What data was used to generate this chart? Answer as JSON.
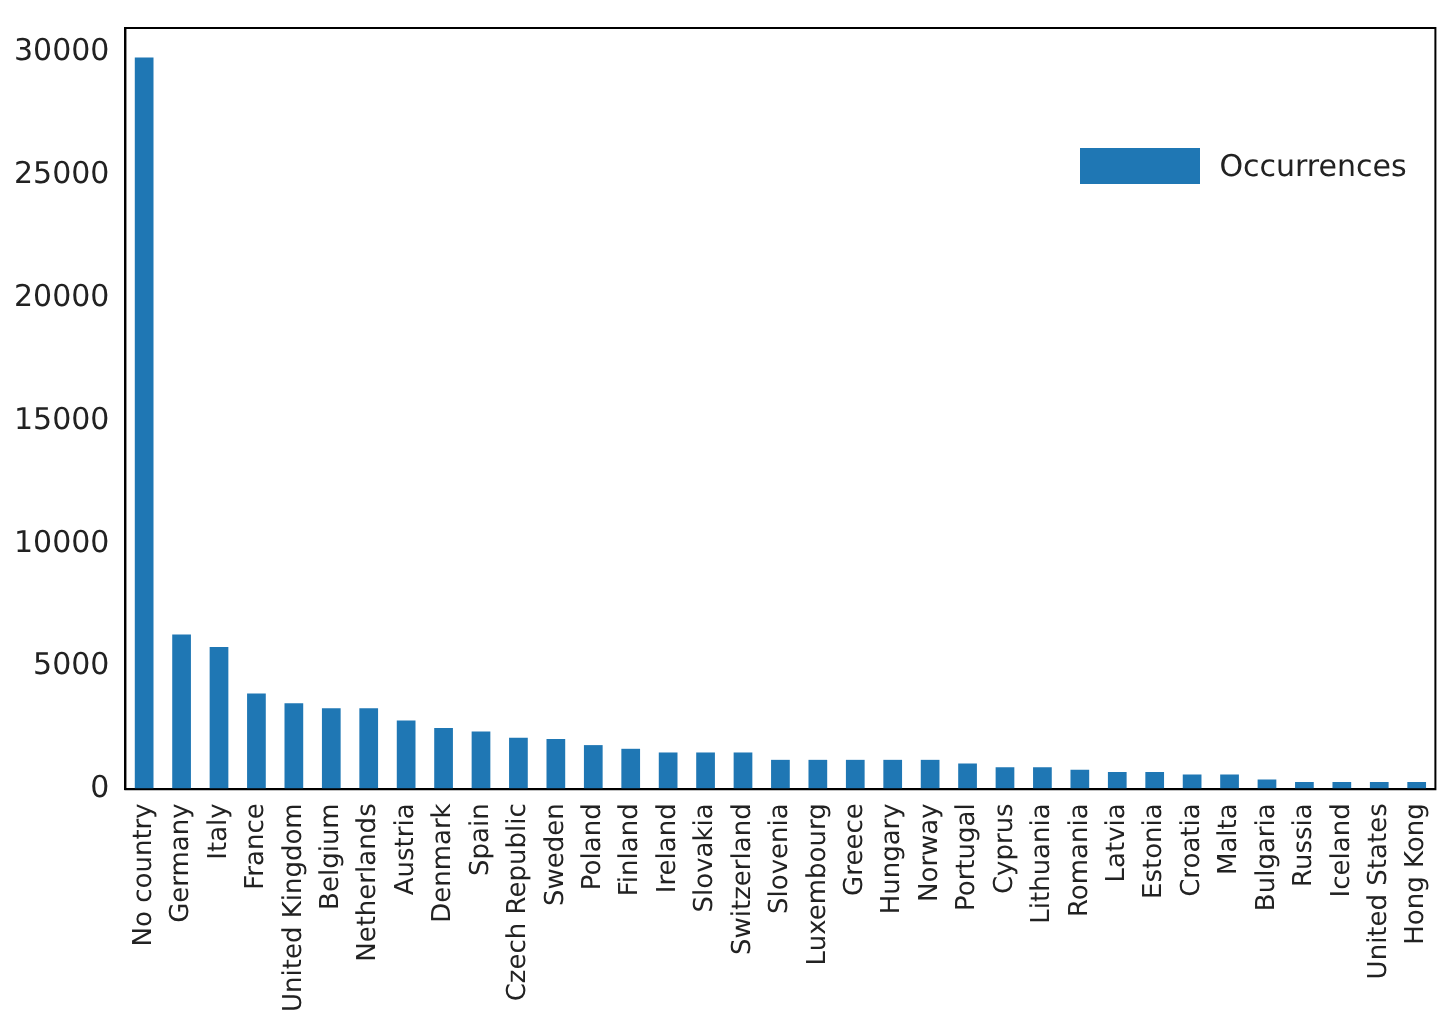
{
  "chart_data": {
    "type": "bar",
    "categories": [
      "No country",
      "Germany",
      "Italy",
      "France",
      "United Kingdom",
      "Belgium",
      "Netherlands",
      "Austria",
      "Denmark",
      "Spain",
      "Czech Republic",
      "Sweden",
      "Poland",
      "Finland",
      "Ireland",
      "Slovakia",
      "Switzerland",
      "Slovenia",
      "Luxembourg",
      "Greece",
      "Hungary",
      "Norway",
      "Portugal",
      "Cyprus",
      "Lithuania",
      "Romania",
      "Latvia",
      "Estonia",
      "Croatia",
      "Malta",
      "Bulgaria",
      "Russia",
      "Iceland",
      "United States",
      "Hong Kong"
    ],
    "series": [
      {
        "name": "Occurrences",
        "color": "#1f77b4",
        "values": [
          29800,
          6300,
          5800,
          3900,
          3500,
          3300,
          3300,
          2800,
          2500,
          2350,
          2100,
          2050,
          1800,
          1650,
          1500,
          1500,
          1500,
          1200,
          1200,
          1200,
          1200,
          1200,
          1050,
          900,
          900,
          800,
          700,
          700,
          600,
          600,
          400,
          300,
          300,
          300,
          300
        ]
      }
    ],
    "ylim": [
      0,
      31000
    ],
    "yticks": [
      0,
      5000,
      10000,
      15000,
      20000,
      25000,
      30000
    ],
    "grid": false,
    "legend": "top right"
  }
}
